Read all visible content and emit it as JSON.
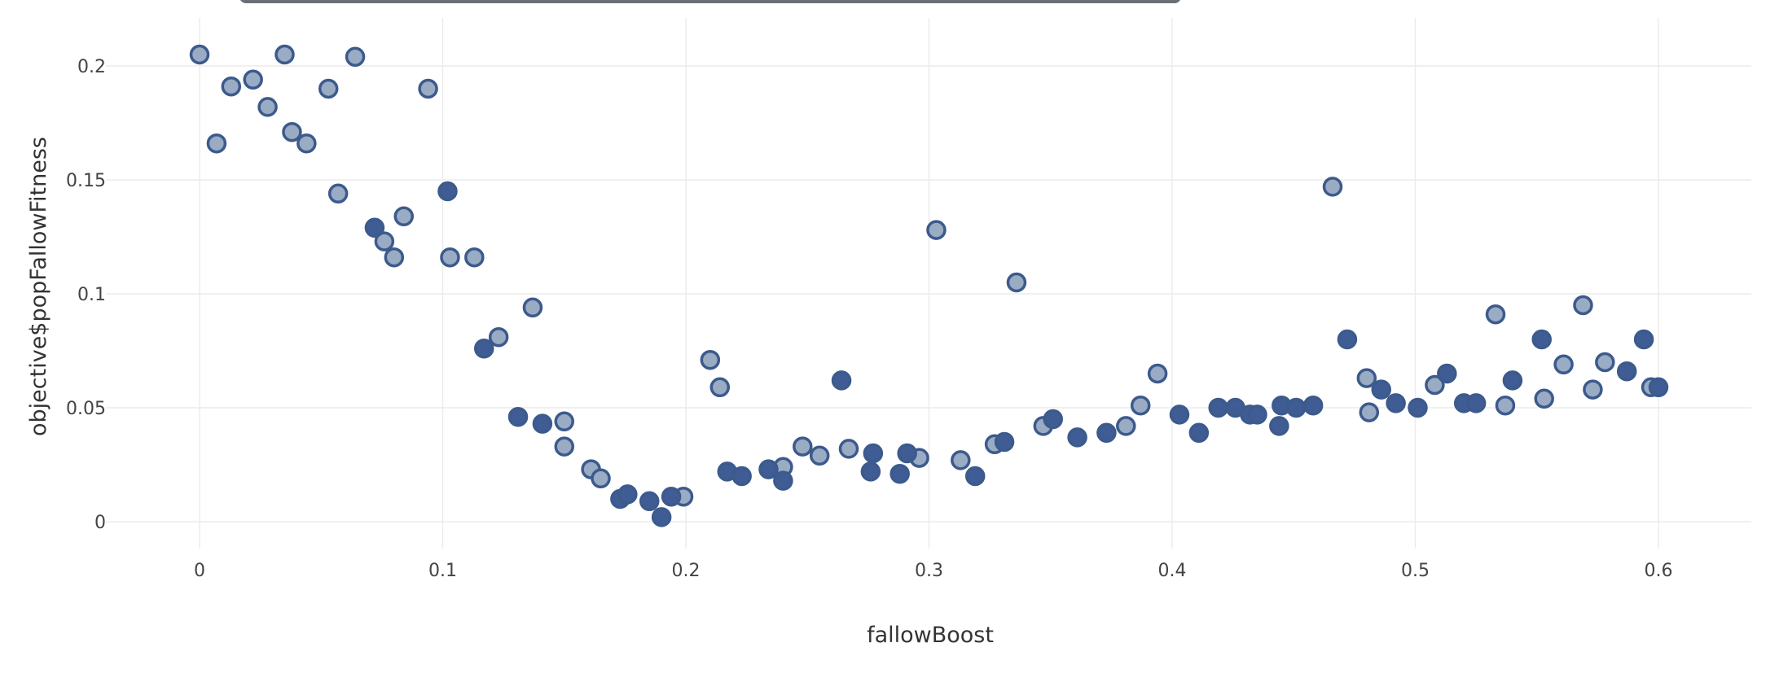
{
  "chart_data": {
    "type": "scatter",
    "xlabel": "fallowBoost",
    "ylabel": "objective$popFallowFitness",
    "xlim": [
      -0.04,
      0.64
    ],
    "ylim": [
      -0.015,
      0.222
    ],
    "x_ticks": [
      "0",
      "0.1",
      "0.2",
      "0.3",
      "0.4",
      "0.5",
      "0.6"
    ],
    "x_tick_values": [
      0,
      0.1,
      0.2,
      0.3,
      0.4,
      0.5,
      0.6
    ],
    "y_ticks": [
      "0",
      "0.05",
      "0.1",
      "0.15",
      "0.2"
    ],
    "y_tick_values": [
      0,
      0.05,
      0.1,
      0.15,
      0.2
    ],
    "grid": true,
    "colors": {
      "light_fill": "#9aabc4",
      "dark_fill": "#3f5d94",
      "stroke": "#3c5a8c",
      "grid": "#ebebeb"
    },
    "series": [
      {
        "style": "light",
        "points": [
          [
            0.0,
            0.205
          ],
          [
            0.007,
            0.166
          ],
          [
            0.013,
            0.191
          ],
          [
            0.022,
            0.194
          ],
          [
            0.028,
            0.182
          ],
          [
            0.035,
            0.205
          ],
          [
            0.038,
            0.171
          ],
          [
            0.044,
            0.166
          ],
          [
            0.053,
            0.19
          ],
          [
            0.057,
            0.144
          ],
          [
            0.064,
            0.204
          ],
          [
            0.076,
            0.123
          ],
          [
            0.08,
            0.116
          ],
          [
            0.084,
            0.134
          ],
          [
            0.094,
            0.19
          ],
          [
            0.103,
            0.116
          ],
          [
            0.113,
            0.116
          ],
          [
            0.123,
            0.081
          ],
          [
            0.137,
            0.094
          ],
          [
            0.15,
            0.044
          ],
          [
            0.15,
            0.033
          ],
          [
            0.161,
            0.023
          ],
          [
            0.165,
            0.019
          ],
          [
            0.199,
            0.011
          ],
          [
            0.21,
            0.071
          ],
          [
            0.214,
            0.059
          ],
          [
            0.24,
            0.024
          ],
          [
            0.248,
            0.033
          ],
          [
            0.255,
            0.029
          ],
          [
            0.267,
            0.032
          ],
          [
            0.296,
            0.028
          ],
          [
            0.303,
            0.128
          ],
          [
            0.313,
            0.027
          ],
          [
            0.327,
            0.034
          ],
          [
            0.336,
            0.105
          ],
          [
            0.347,
            0.042
          ],
          [
            0.381,
            0.042
          ],
          [
            0.387,
            0.051
          ],
          [
            0.394,
            0.065
          ],
          [
            0.466,
            0.147
          ],
          [
            0.48,
            0.063
          ],
          [
            0.481,
            0.048
          ],
          [
            0.508,
            0.06
          ],
          [
            0.533,
            0.091
          ],
          [
            0.537,
            0.051
          ],
          [
            0.553,
            0.054
          ],
          [
            0.561,
            0.069
          ],
          [
            0.569,
            0.095
          ],
          [
            0.573,
            0.058
          ],
          [
            0.578,
            0.07
          ],
          [
            0.597,
            0.059
          ]
        ]
      },
      {
        "style": "dark",
        "points": [
          [
            0.072,
            0.129
          ],
          [
            0.102,
            0.145
          ],
          [
            0.117,
            0.076
          ],
          [
            0.131,
            0.046
          ],
          [
            0.141,
            0.043
          ],
          [
            0.173,
            0.01
          ],
          [
            0.176,
            0.012
          ],
          [
            0.185,
            0.009
          ],
          [
            0.19,
            0.002
          ],
          [
            0.194,
            0.011
          ],
          [
            0.217,
            0.022
          ],
          [
            0.223,
            0.02
          ],
          [
            0.234,
            0.023
          ],
          [
            0.24,
            0.018
          ],
          [
            0.264,
            0.062
          ],
          [
            0.276,
            0.022
          ],
          [
            0.277,
            0.03
          ],
          [
            0.288,
            0.021
          ],
          [
            0.291,
            0.03
          ],
          [
            0.319,
            0.02
          ],
          [
            0.331,
            0.035
          ],
          [
            0.351,
            0.045
          ],
          [
            0.361,
            0.037
          ],
          [
            0.373,
            0.039
          ],
          [
            0.403,
            0.047
          ],
          [
            0.411,
            0.039
          ],
          [
            0.419,
            0.05
          ],
          [
            0.426,
            0.05
          ],
          [
            0.432,
            0.047
          ],
          [
            0.435,
            0.047
          ],
          [
            0.444,
            0.042
          ],
          [
            0.445,
            0.051
          ],
          [
            0.451,
            0.05
          ],
          [
            0.458,
            0.051
          ],
          [
            0.472,
            0.08
          ],
          [
            0.486,
            0.058
          ],
          [
            0.492,
            0.052
          ],
          [
            0.501,
            0.05
          ],
          [
            0.513,
            0.065
          ],
          [
            0.52,
            0.052
          ],
          [
            0.525,
            0.052
          ],
          [
            0.54,
            0.062
          ],
          [
            0.552,
            0.08
          ],
          [
            0.587,
            0.066
          ],
          [
            0.594,
            0.08
          ],
          [
            0.6,
            0.059
          ]
        ]
      }
    ]
  }
}
